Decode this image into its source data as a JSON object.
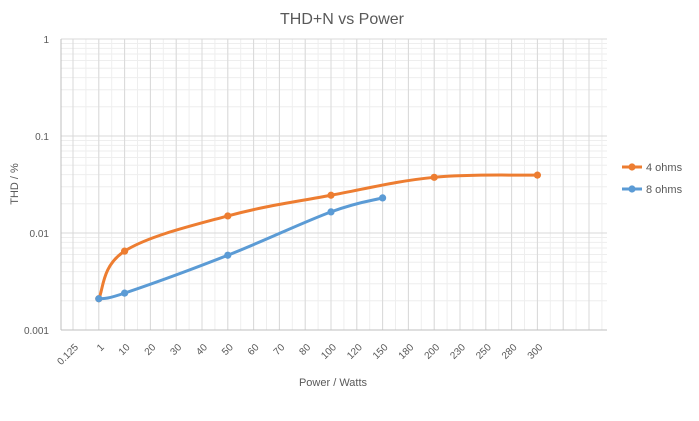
{
  "chart_data": {
    "type": "line",
    "title": "THD+N vs Power",
    "xlabel": "Power / Watts",
    "ylabel": "THD / %",
    "x_categories": [
      "0.125",
      "1",
      "10",
      "20",
      "30",
      "40",
      "50",
      "60",
      "70",
      "80",
      "100",
      "120",
      "150",
      "180",
      "200",
      "230",
      "250",
      "280",
      "300"
    ],
    "y_scale": "log",
    "ylim": [
      0.001,
      1
    ],
    "y_ticks": [
      "0.001",
      "0.01",
      "0.1",
      "1"
    ],
    "grid": true,
    "legend_position": "right",
    "series": [
      {
        "name": "4 ohms",
        "color": "#ED7D31",
        "points": [
          {
            "x": "1",
            "y": 0.0021
          },
          {
            "x": "10",
            "y": 0.0065
          },
          {
            "x": "50",
            "y": 0.015
          },
          {
            "x": "100",
            "y": 0.0245
          },
          {
            "x": "200",
            "y": 0.0375
          },
          {
            "x": "300",
            "y": 0.0395
          }
        ]
      },
      {
        "name": "8 ohms",
        "color": "#5B9BD5",
        "points": [
          {
            "x": "1",
            "y": 0.0021
          },
          {
            "x": "10",
            "y": 0.0024
          },
          {
            "x": "50",
            "y": 0.0059
          },
          {
            "x": "100",
            "y": 0.0165
          },
          {
            "x": "150",
            "y": 0.023
          }
        ]
      }
    ]
  }
}
